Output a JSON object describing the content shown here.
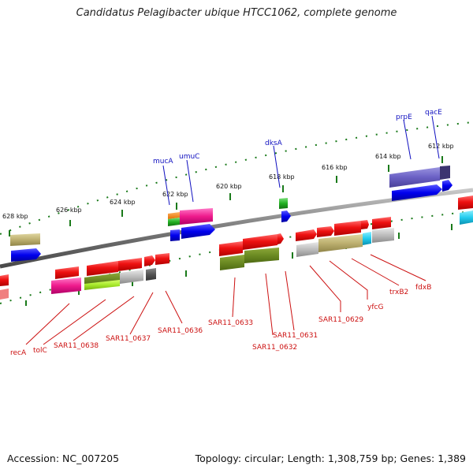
{
  "title": "Candidatus Pelagibacter ubique HTCC1062, complete genome",
  "footer": {
    "accession": "Accession: NC_007205",
    "info": "Topology: circular; Length: 1,308,759 bp; Genes: 1,389"
  },
  "ticks": [
    {
      "label": "628 kbp"
    },
    {
      "label": "626 kbp"
    },
    {
      "label": "624 kbp"
    },
    {
      "label": "622 kbp"
    },
    {
      "label": "620 kbp"
    },
    {
      "label": "618 kbp"
    },
    {
      "label": "616 kbp"
    },
    {
      "label": "614 kbp"
    },
    {
      "label": "612 kbp"
    }
  ],
  "top_labels": [
    "mucA",
    "umuC",
    "dksA",
    "prpE",
    "qacE"
  ],
  "bottom_labels": [
    "recA",
    "tolC",
    "SAR11_0638",
    "SAR11_0637",
    "SAR11_0636",
    "SAR11_0633",
    "SAR11_0632",
    "SAR11_0631",
    "SAR11_0629",
    "yfcG",
    "trxB2",
    "fdxB"
  ],
  "colors": {
    "label_top": "#1010c0",
    "label_bottom": "#cc1010",
    "backbone": "#8a8a8a",
    "tick": "#1a7a1a"
  }
}
